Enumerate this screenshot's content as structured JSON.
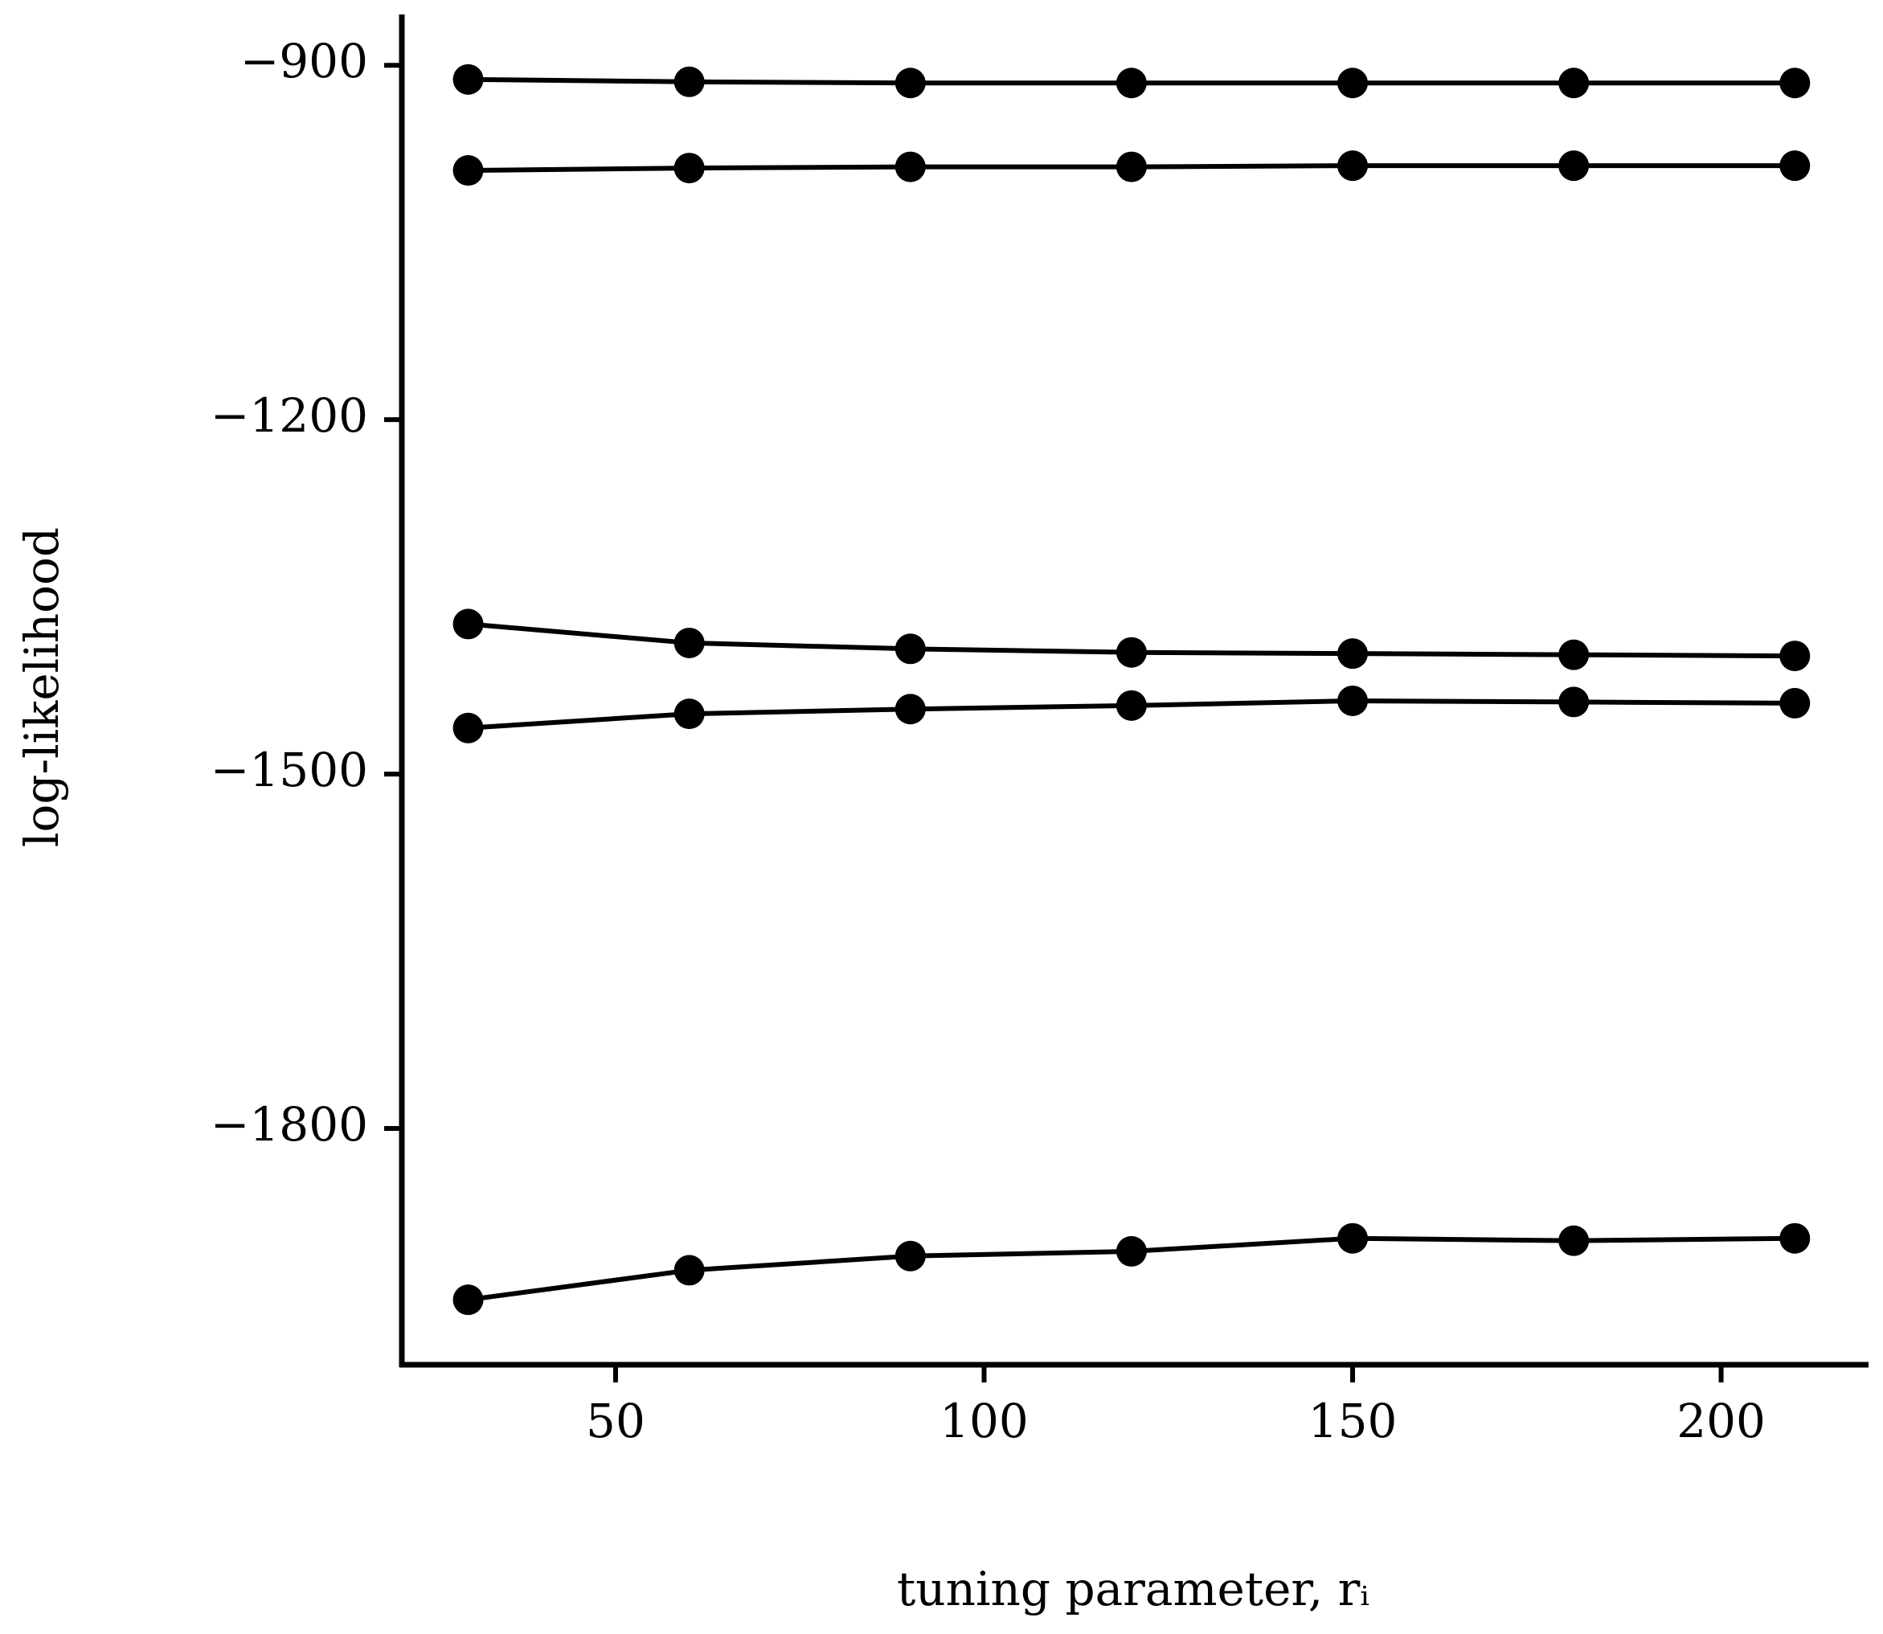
{
  "chart_data": {
    "type": "line",
    "xlabel": "tuning parameter, rᵢ",
    "ylabel": "log-likelihood",
    "x": [
      30,
      60,
      90,
      120,
      150,
      180,
      210
    ],
    "series": [
      {
        "color": "#000000",
        "values": [
          -912,
          -914,
          -915,
          -915,
          -915,
          -915,
          -915
        ]
      },
      {
        "color": "#000000",
        "values": [
          -989,
          -987,
          -986,
          -986,
          -985,
          -985,
          -985
        ]
      },
      {
        "color": "#000000",
        "values": [
          -1373,
          -1389,
          -1394,
          -1397,
          -1398,
          -1399,
          -1400
        ]
      },
      {
        "color": "#000000",
        "values": [
          -1461,
          -1449,
          -1445,
          -1442,
          -1438,
          -1439,
          -1440
        ]
      },
      {
        "color": "#000000",
        "values": [
          -1945,
          -1920,
          -1908,
          -1904,
          -1893,
          -1895,
          -1893
        ]
      }
    ],
    "xlim": [
      21,
      220
    ],
    "ylim": [
      -2000,
      -857
    ],
    "xticks": [
      50,
      100,
      150,
      200
    ],
    "yticks": [
      {
        "value": -900,
        "label": "−900"
      },
      {
        "value": -1200,
        "label": "−1200"
      },
      {
        "value": -1500,
        "label": "−1500"
      },
      {
        "value": -1800,
        "label": "−1800"
      }
    ]
  }
}
